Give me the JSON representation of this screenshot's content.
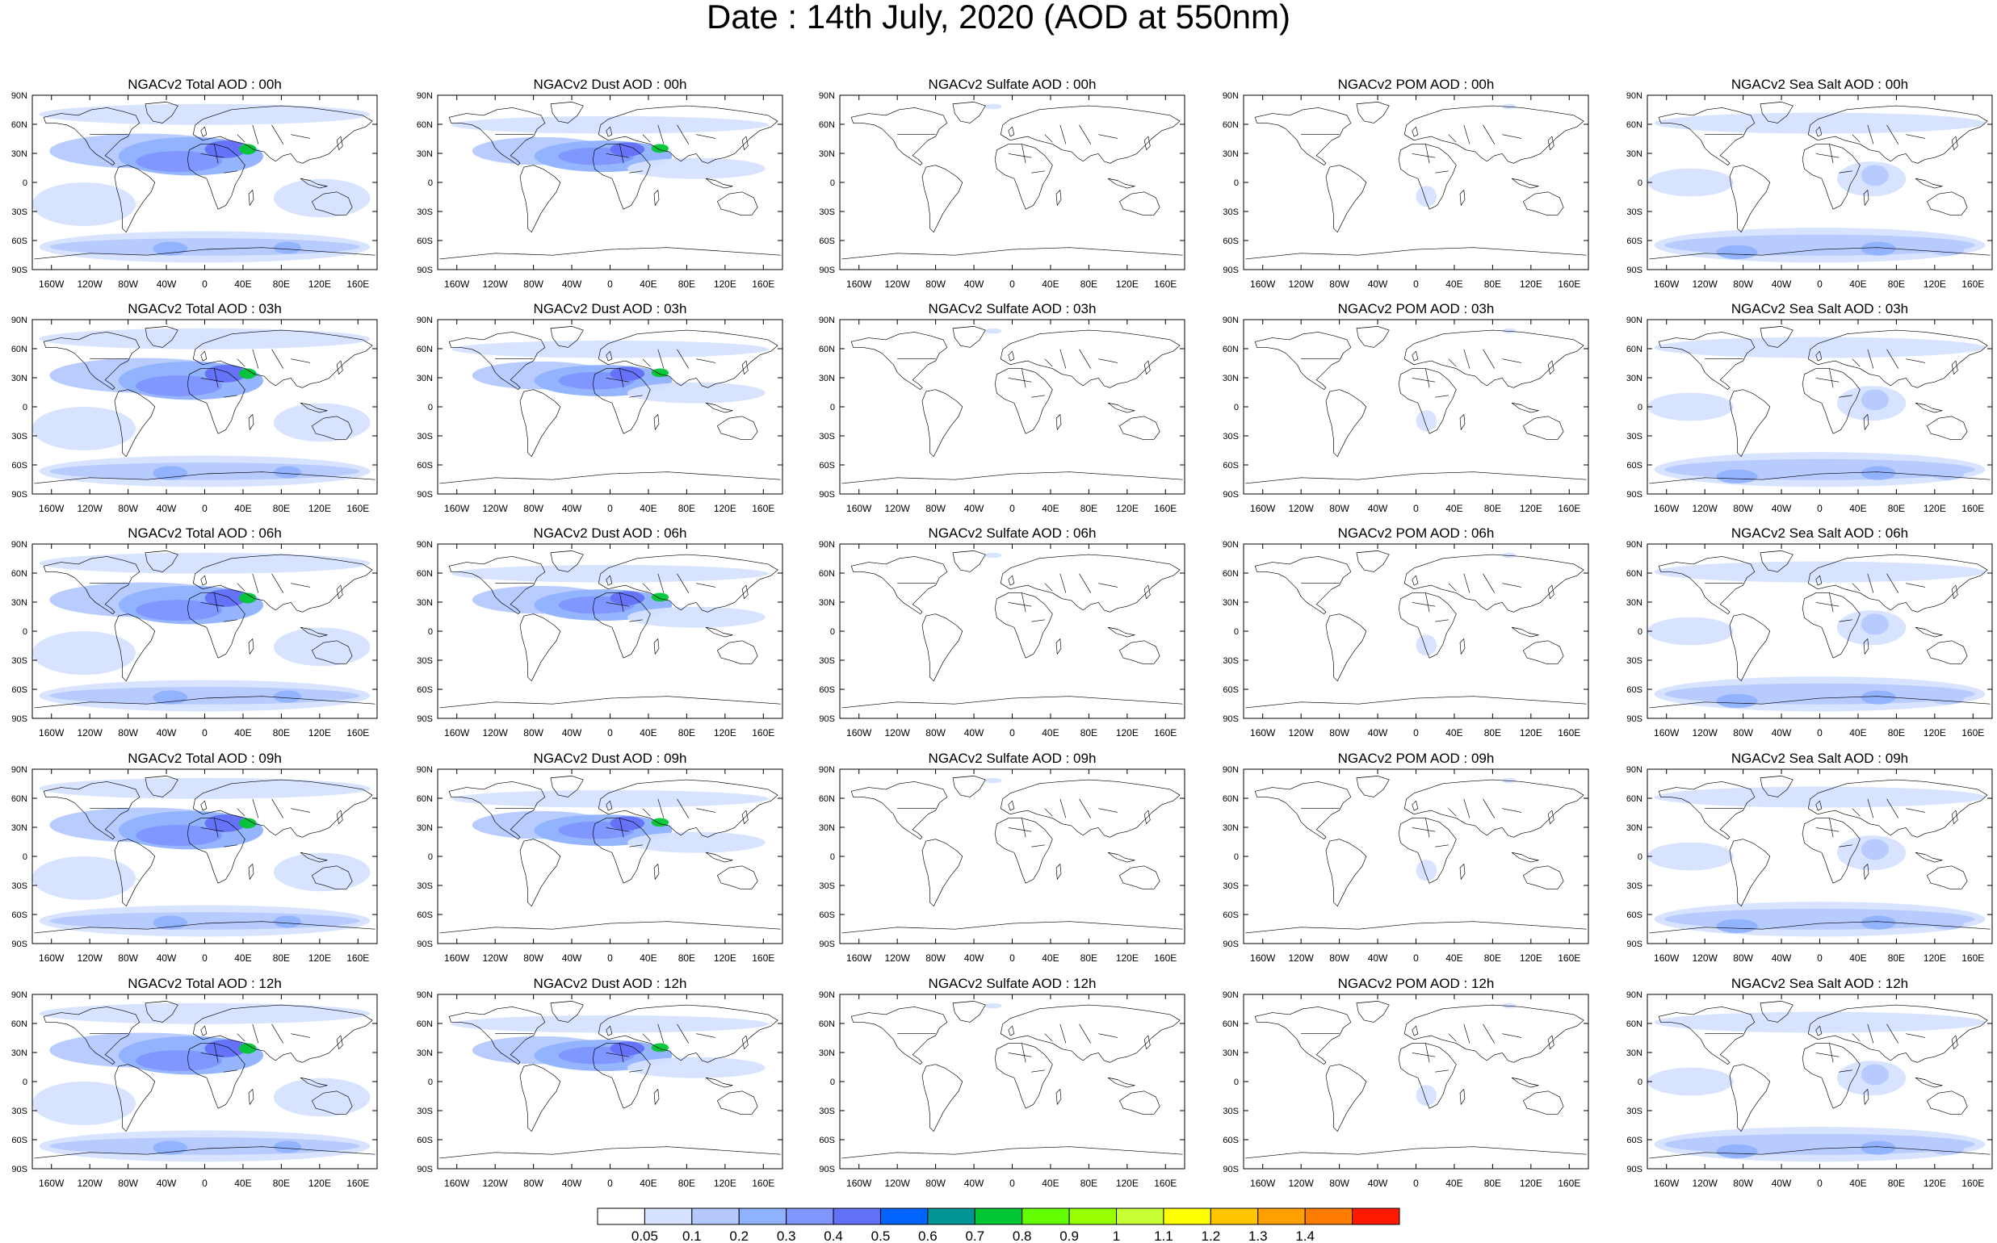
{
  "title": "Date : 14th July, 2020 (AOD at 550nm)",
  "colors": {
    "land_outline": "#000000",
    "background": "#ffffff"
  },
  "lat_ticks": [
    "90N",
    "60N",
    "30N",
    "0",
    "30S",
    "60S",
    "90S"
  ],
  "lon_ticks": [
    "160W",
    "120W",
    "80W",
    "40W",
    "0",
    "40E",
    "80E",
    "120E",
    "160E"
  ],
  "panels": [
    {
      "title": "NGACv2 Total AOD : 00h",
      "species": "total",
      "hour": "00h"
    },
    {
      "title": "NGACv2 Dust AOD : 00h",
      "species": "dust",
      "hour": "00h"
    },
    {
      "title": "NGACv2 Sulfate AOD : 00h",
      "species": "sulfate",
      "hour": "00h"
    },
    {
      "title": "NGACv2 POM AOD : 00h",
      "species": "pom",
      "hour": "00h"
    },
    {
      "title": "NGACv2 Sea Salt AOD : 00h",
      "species": "seasalt",
      "hour": "00h"
    },
    {
      "title": "NGACv2 Total AOD : 03h",
      "species": "total",
      "hour": "03h"
    },
    {
      "title": "NGACv2 Dust AOD : 03h",
      "species": "dust",
      "hour": "03h"
    },
    {
      "title": "NGACv2 Sulfate AOD : 03h",
      "species": "sulfate",
      "hour": "03h"
    },
    {
      "title": "NGACv2 POM AOD : 03h",
      "species": "pom",
      "hour": "03h"
    },
    {
      "title": "NGACv2 Sea Salt AOD : 03h",
      "species": "seasalt",
      "hour": "03h"
    },
    {
      "title": "NGACv2 Total AOD : 06h",
      "species": "total",
      "hour": "06h"
    },
    {
      "title": "NGACv2 Dust AOD : 06h",
      "species": "dust",
      "hour": "06h"
    },
    {
      "title": "NGACv2 Sulfate AOD : 06h",
      "species": "sulfate",
      "hour": "06h"
    },
    {
      "title": "NGACv2 POM AOD : 06h",
      "species": "pom",
      "hour": "06h"
    },
    {
      "title": "NGACv2 Sea Salt AOD : 06h",
      "species": "seasalt",
      "hour": "06h"
    },
    {
      "title": "NGACv2 Total AOD : 09h",
      "species": "total",
      "hour": "09h"
    },
    {
      "title": "NGACv2 Dust AOD : 09h",
      "species": "dust",
      "hour": "09h"
    },
    {
      "title": "NGACv2 Sulfate AOD : 09h",
      "species": "sulfate",
      "hour": "09h"
    },
    {
      "title": "NGACv2 POM AOD : 09h",
      "species": "pom",
      "hour": "09h"
    },
    {
      "title": "NGACv2 Sea Salt  AOD : 09h",
      "species": "seasalt",
      "hour": "09h"
    },
    {
      "title": "NGACv2 Total AOD  : 12h",
      "species": "total",
      "hour": "12h"
    },
    {
      "title": "NGACv2 Dust AOD : 12h",
      "species": "dust",
      "hour": "12h"
    },
    {
      "title": "NGACv2 Sulfate AOD : 12h",
      "species": "sulfate",
      "hour": "12h"
    },
    {
      "title": "NGACv2 POM  AOD : 12h",
      "species": "pom",
      "hour": "12h"
    },
    {
      "title": "NGACv2 Sea Salt AOD : 12h",
      "species": "seasalt",
      "hour": "12h"
    }
  ],
  "colorbar": {
    "labels": [
      "0.05",
      "0.1",
      "0.2",
      "0.3",
      "0.4",
      "0.5",
      "0.6",
      "0.7",
      "0.8",
      "0.9",
      "1",
      "1.1",
      "1.2",
      "1.3",
      "1.4"
    ],
    "colors": [
      "#ffffff",
      "#d6e2ff",
      "#b5c9ff",
      "#8fb2ff",
      "#7f96ff",
      "#6370f8",
      "#0063ff",
      "#009696",
      "#00c633",
      "#63ff00",
      "#96ff00",
      "#c6ff33",
      "#ffff00",
      "#ffc600",
      "#ffa000",
      "#ff7c00",
      "#ff1900"
    ]
  }
}
